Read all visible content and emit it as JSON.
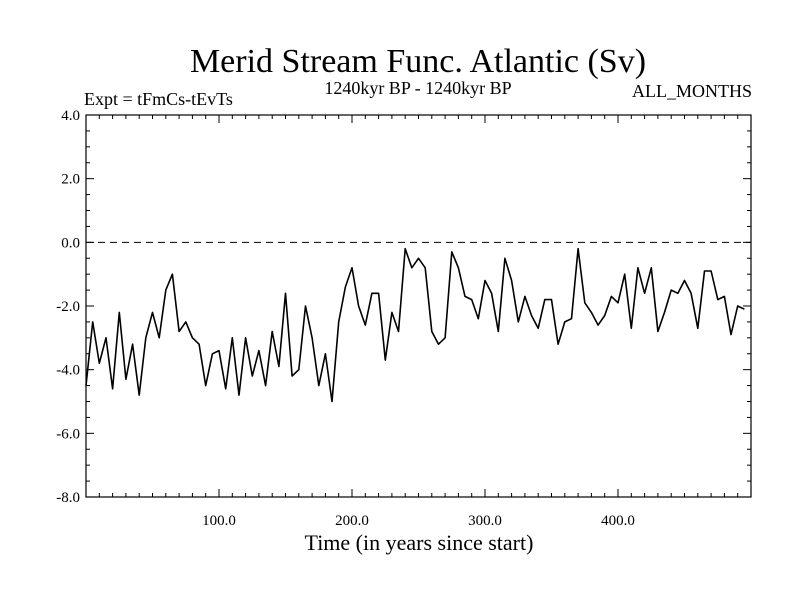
{
  "chart_data": {
    "type": "line",
    "title": "Merid Stream Func. Atlantic (Sv)",
    "subtitle": "1240kyr BP - 1240kyr BP",
    "left_annotation": "Expt = tFmCs-tEvTs",
    "right_annotation": "ALL_MONTHS",
    "xlabel": "Time (in years since start)",
    "ylabel": "",
    "xlim": [
      0,
      500
    ],
    "ylim": [
      -8.0,
      4.0
    ],
    "x_ticks": [
      100,
      200,
      300,
      400
    ],
    "x_tick_labels": [
      "100.0",
      "200.0",
      "300.0",
      "400.0"
    ],
    "y_ticks": [
      -8,
      -6,
      -4,
      -2,
      0,
      2,
      4
    ],
    "y_tick_labels": [
      "-8.0",
      "-6.0",
      "-4.0",
      "-2.0",
      "0.0",
      "2.0",
      "4.0"
    ],
    "reference_line": {
      "y": 0.0,
      "style": "dashed"
    },
    "series": [
      {
        "name": "Merid Stream Func. Atlantic",
        "x_start": 0,
        "x_step": 5,
        "values": [
          -4.5,
          -2.5,
          -3.8,
          -3.0,
          -4.6,
          -2.2,
          -4.3,
          -3.2,
          -4.8,
          -3.0,
          -2.2,
          -3.0,
          -1.5,
          -1.0,
          -2.8,
          -2.5,
          -3.0,
          -3.2,
          -4.5,
          -3.5,
          -3.4,
          -4.6,
          -3.0,
          -4.8,
          -3.0,
          -4.2,
          -3.4,
          -4.5,
          -2.8,
          -3.9,
          -1.6,
          -4.2,
          -4.0,
          -2.0,
          -3.0,
          -4.5,
          -3.5,
          -5.0,
          -2.5,
          -1.4,
          -0.8,
          -2.0,
          -2.6,
          -1.6,
          -1.6,
          -3.7,
          -2.2,
          -2.8,
          -0.2,
          -0.8,
          -0.5,
          -0.8,
          -2.8,
          -3.2,
          -3.0,
          -0.3,
          -0.8,
          -1.7,
          -1.8,
          -2.4,
          -1.2,
          -1.6,
          -2.8,
          -0.5,
          -1.2,
          -2.5,
          -1.7,
          -2.3,
          -2.7,
          -1.8,
          -1.8,
          -3.2,
          -2.5,
          -2.4,
          -0.2,
          -1.9,
          -2.2,
          -2.6,
          -2.3,
          -1.7,
          -1.9,
          -1.0,
          -2.7,
          -0.8,
          -1.6,
          -0.8,
          -2.8,
          -2.2,
          -1.5,
          -1.6,
          -1.2,
          -1.6,
          -2.7,
          -0.9,
          -0.9,
          -1.8,
          -1.7,
          -2.9,
          -2.0,
          -2.1
        ]
      }
    ]
  }
}
